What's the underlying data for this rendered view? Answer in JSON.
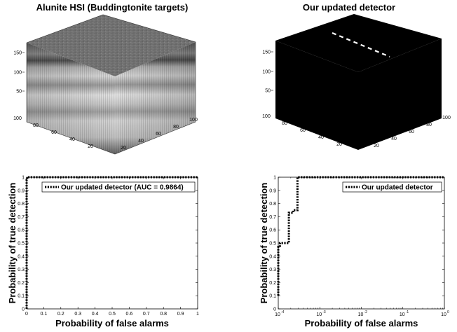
{
  "chart_data": [
    {
      "type": "cube3d",
      "title": "Alunite HSI (Buddingtonite targets)",
      "x_ticks": [
        "20",
        "40",
        "60",
        "80",
        "100"
      ],
      "y_ticks": [
        "20",
        "40",
        "60",
        "80",
        "100"
      ],
      "z_ticks": [
        "50",
        "100",
        "150"
      ],
      "surface": "grayscale hyperspectral cube with bright vertical spectral banding"
    },
    {
      "type": "cube3d",
      "title": "Our updated detector",
      "x_ticks": [
        "20",
        "40",
        "60",
        "80",
        "100"
      ],
      "y_ticks": [
        "20",
        "40",
        "60",
        "80",
        "100"
      ],
      "z_ticks": [
        "50",
        "100",
        "150"
      ],
      "surface": "black detection map with a dashed white target line on the top face"
    },
    {
      "type": "line",
      "title": "",
      "xlabel": "Probability of false alarms",
      "ylabel": "Probability of true detection",
      "xlim": [
        0,
        1
      ],
      "ylim": [
        0,
        1
      ],
      "x_ticks": [
        "0",
        "0.1",
        "0.2",
        "0.3",
        "0.4",
        "0.5",
        "0.6",
        "0.7",
        "0.8",
        "0.9",
        "1"
      ],
      "y_ticks": [
        "0",
        "0.1",
        "0.2",
        "0.3",
        "0.4",
        "0.5",
        "0.6",
        "0.7",
        "0.8",
        "0.9",
        "1"
      ],
      "legend": "top-right",
      "series": [
        {
          "name": "Our updated detector (AUC = 0.9864)",
          "x": [
            0,
            0,
            0.003,
            0.003,
            1
          ],
          "y": [
            0,
            0.98,
            0.98,
            1,
            1
          ]
        }
      ]
    },
    {
      "type": "line",
      "title": "",
      "xlabel": "Probability of false alarms",
      "ylabel": "Probability of true detection",
      "xscale": "log",
      "xlim": [
        0.0001,
        1
      ],
      "ylim": [
        0,
        1
      ],
      "x_ticks": [
        {
          "base": "10",
          "exp": "-4"
        },
        {
          "base": "10",
          "exp": "-3"
        },
        {
          "base": "10",
          "exp": "-2"
        },
        {
          "base": "10",
          "exp": "-1"
        },
        {
          "base": "10",
          "exp": "0"
        }
      ],
      "y_ticks": [
        "0",
        "0.1",
        "0.2",
        "0.3",
        "0.4",
        "0.5",
        "0.6",
        "0.7",
        "0.8",
        "0.9",
        "1"
      ],
      "legend": "top-right",
      "series": [
        {
          "name": "Our updated detector",
          "x": [
            0.0001,
            0.0001,
            0.00011,
            0.00011,
            0.00018,
            0.00018,
            0.00023,
            0.00023,
            0.00029,
            0.00029,
            1
          ],
          "y": [
            0.1,
            0.47,
            0.47,
            0.5,
            0.5,
            0.73,
            0.73,
            0.75,
            0.75,
            1,
            1
          ]
        }
      ]
    }
  ]
}
